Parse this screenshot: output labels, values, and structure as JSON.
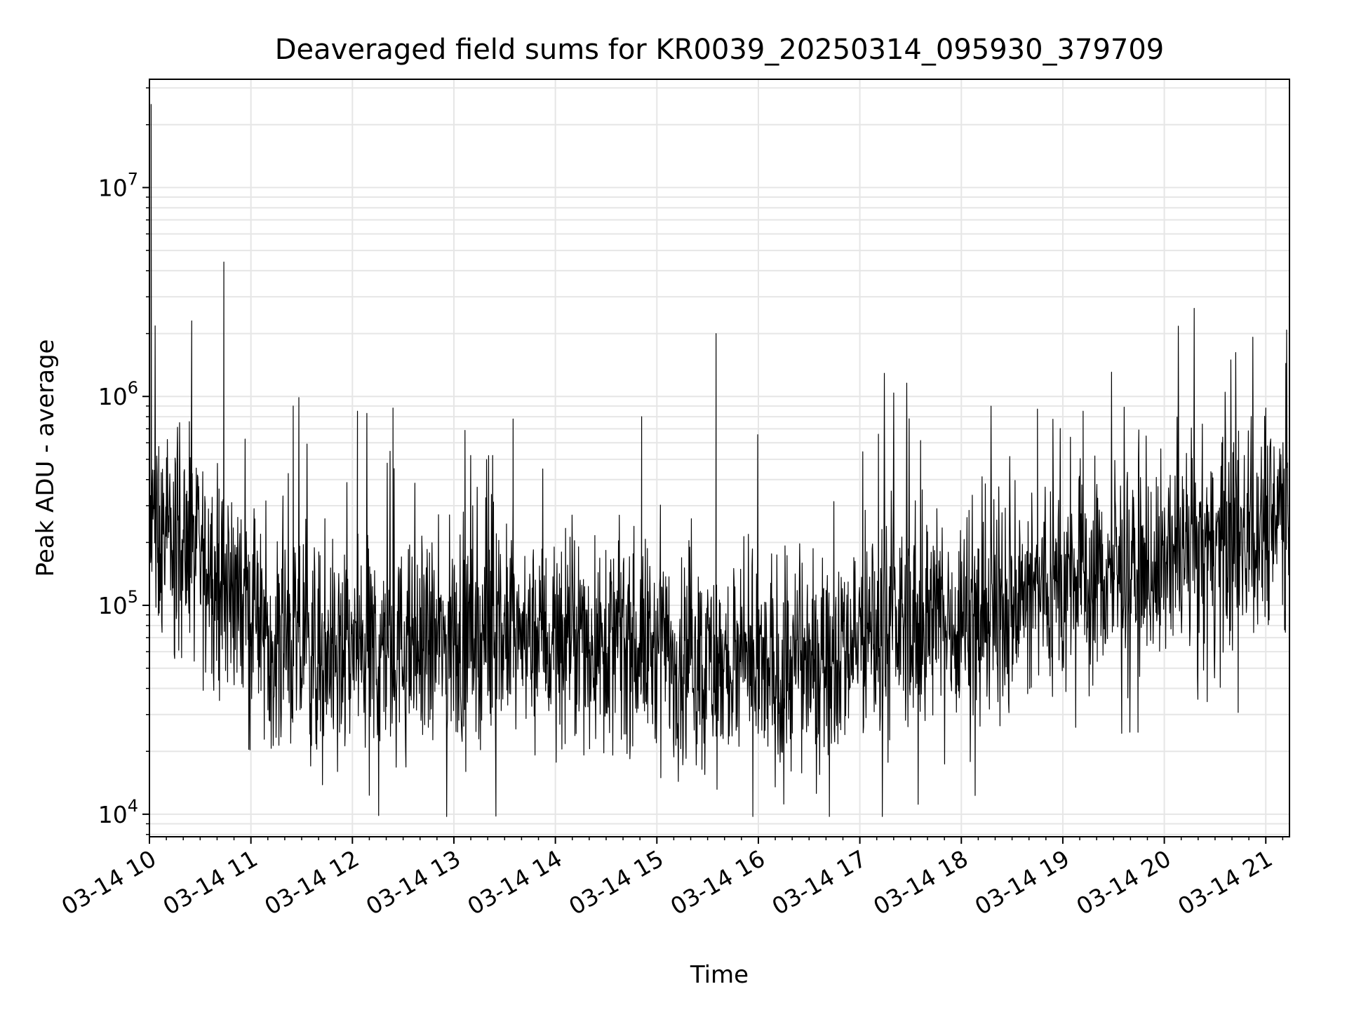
{
  "chart_data": {
    "type": "line",
    "title": "Deaveraged field sums for KR0039_20250314_095930_379709",
    "xlabel": "Time",
    "ylabel": "Peak ADU - average",
    "y_scale": "log",
    "ylim": [
      7800,
      33000000
    ],
    "xlim": [
      "2025-03-14 10:00",
      "2025-03-14 21:14"
    ],
    "grid": true,
    "line_color": "#000000",
    "grid_color": "#e6e6e6",
    "x_ticks": [
      {
        "value": "2025-03-14 10:00",
        "label": "03-14 10"
      },
      {
        "value": "2025-03-14 11:00",
        "label": "03-14 11"
      },
      {
        "value": "2025-03-14 12:00",
        "label": "03-14 12"
      },
      {
        "value": "2025-03-14 13:00",
        "label": "03-14 13"
      },
      {
        "value": "2025-03-14 14:00",
        "label": "03-14 14"
      },
      {
        "value": "2025-03-14 15:00",
        "label": "03-14 15"
      },
      {
        "value": "2025-03-14 16:00",
        "label": "03-14 16"
      },
      {
        "value": "2025-03-14 17:00",
        "label": "03-14 17"
      },
      {
        "value": "2025-03-14 18:00",
        "label": "03-14 18"
      },
      {
        "value": "2025-03-14 19:00",
        "label": "03-14 19"
      },
      {
        "value": "2025-03-14 20:00",
        "label": "03-14 20"
      },
      {
        "value": "2025-03-14 21:00",
        "label": "03-14 21"
      }
    ],
    "y_ticks": [
      {
        "value": 10000,
        "base": "10",
        "exp": "4"
      },
      {
        "value": 100000,
        "base": "10",
        "exp": "5"
      },
      {
        "value": 1000000,
        "base": "10",
        "exp": "6"
      },
      {
        "value": 10000000,
        "base": "10",
        "exp": "7"
      }
    ],
    "series": [
      {
        "x": [
          "2025-03-14 10:00",
          "2025-03-14 10:10",
          "2025-03-14 10:20",
          "2025-03-14 10:30",
          "2025-03-14 10:40",
          "2025-03-14 10:50",
          "2025-03-14 11:00",
          "2025-03-14 11:10",
          "2025-03-14 11:20",
          "2025-03-14 11:30",
          "2025-03-14 11:40",
          "2025-03-14 11:50",
          "2025-03-14 12:00",
          "2025-03-14 12:10",
          "2025-03-14 12:20",
          "2025-03-14 12:30",
          "2025-03-14 12:40",
          "2025-03-14 12:50",
          "2025-03-14 13:00",
          "2025-03-14 13:10",
          "2025-03-14 13:20",
          "2025-03-14 13:30",
          "2025-03-14 13:40",
          "2025-03-14 13:50",
          "2025-03-14 14:00",
          "2025-03-14 14:10",
          "2025-03-14 14:20",
          "2025-03-14 14:30",
          "2025-03-14 14:40",
          "2025-03-14 14:50",
          "2025-03-14 15:00",
          "2025-03-14 15:10",
          "2025-03-14 15:20",
          "2025-03-14 15:30",
          "2025-03-14 15:40",
          "2025-03-14 15:50",
          "2025-03-14 16:00",
          "2025-03-14 16:10",
          "2025-03-14 16:20",
          "2025-03-14 16:30",
          "2025-03-14 16:40",
          "2025-03-14 16:50",
          "2025-03-14 17:00",
          "2025-03-14 17:10",
          "2025-03-14 17:20",
          "2025-03-14 17:30",
          "2025-03-14 17:40",
          "2025-03-14 17:50",
          "2025-03-14 18:00",
          "2025-03-14 18:10",
          "2025-03-14 18:20",
          "2025-03-14 18:30",
          "2025-03-14 18:40",
          "2025-03-14 18:50",
          "2025-03-14 19:00",
          "2025-03-14 19:10",
          "2025-03-14 19:20",
          "2025-03-14 19:30",
          "2025-03-14 19:40",
          "2025-03-14 19:50",
          "2025-03-14 20:00",
          "2025-03-14 20:10",
          "2025-03-14 20:20",
          "2025-03-14 20:30",
          "2025-03-14 20:40",
          "2025-03-14 20:50",
          "2025-03-14 21:00",
          "2025-03-14 21:10"
        ],
        "typical": [
          220000,
          200000,
          180000,
          160000,
          140000,
          120000,
          95000,
          75000,
          65000,
          60000,
          58000,
          60000,
          62000,
          60000,
          58000,
          60000,
          62000,
          65000,
          68000,
          70000,
          72000,
          72000,
          70000,
          70000,
          68000,
          68000,
          68000,
          68000,
          66000,
          65000,
          62000,
          58000,
          55000,
          52000,
          50000,
          48000,
          46000,
          48000,
          50000,
          55000,
          60000,
          65000,
          70000,
          75000,
          80000,
          80000,
          82000,
          85000,
          88000,
          90000,
          95000,
          100000,
          110000,
          120000,
          125000,
          130000,
          135000,
          140000,
          145000,
          150000,
          155000,
          165000,
          175000,
          185000,
          200000,
          220000,
          260000,
          320000
        ],
        "spikes": [
          {
            "x": "2025-03-14 10:01",
            "y": 25000000
          },
          {
            "x": "2025-03-14 10:25",
            "y": 2300000
          },
          {
            "x": "2025-03-14 10:44",
            "y": 4400000
          },
          {
            "x": "2025-03-14 11:25",
            "y": 900000
          },
          {
            "x": "2025-03-14 12:03",
            "y": 850000
          },
          {
            "x": "2025-03-14 12:24",
            "y": 880000
          },
          {
            "x": "2025-03-14 13:35",
            "y": 780000
          },
          {
            "x": "2025-03-14 14:51",
            "y": 800000
          },
          {
            "x": "2025-03-14 15:35",
            "y": 2000000
          },
          {
            "x": "2025-03-14 17:11",
            "y": 660000
          },
          {
            "x": "2025-03-14 18:45",
            "y": 870000
          },
          {
            "x": "2025-03-14 19:12",
            "y": 850000
          },
          {
            "x": "2025-03-14 21:00",
            "y": 880000
          }
        ]
      }
    ]
  }
}
